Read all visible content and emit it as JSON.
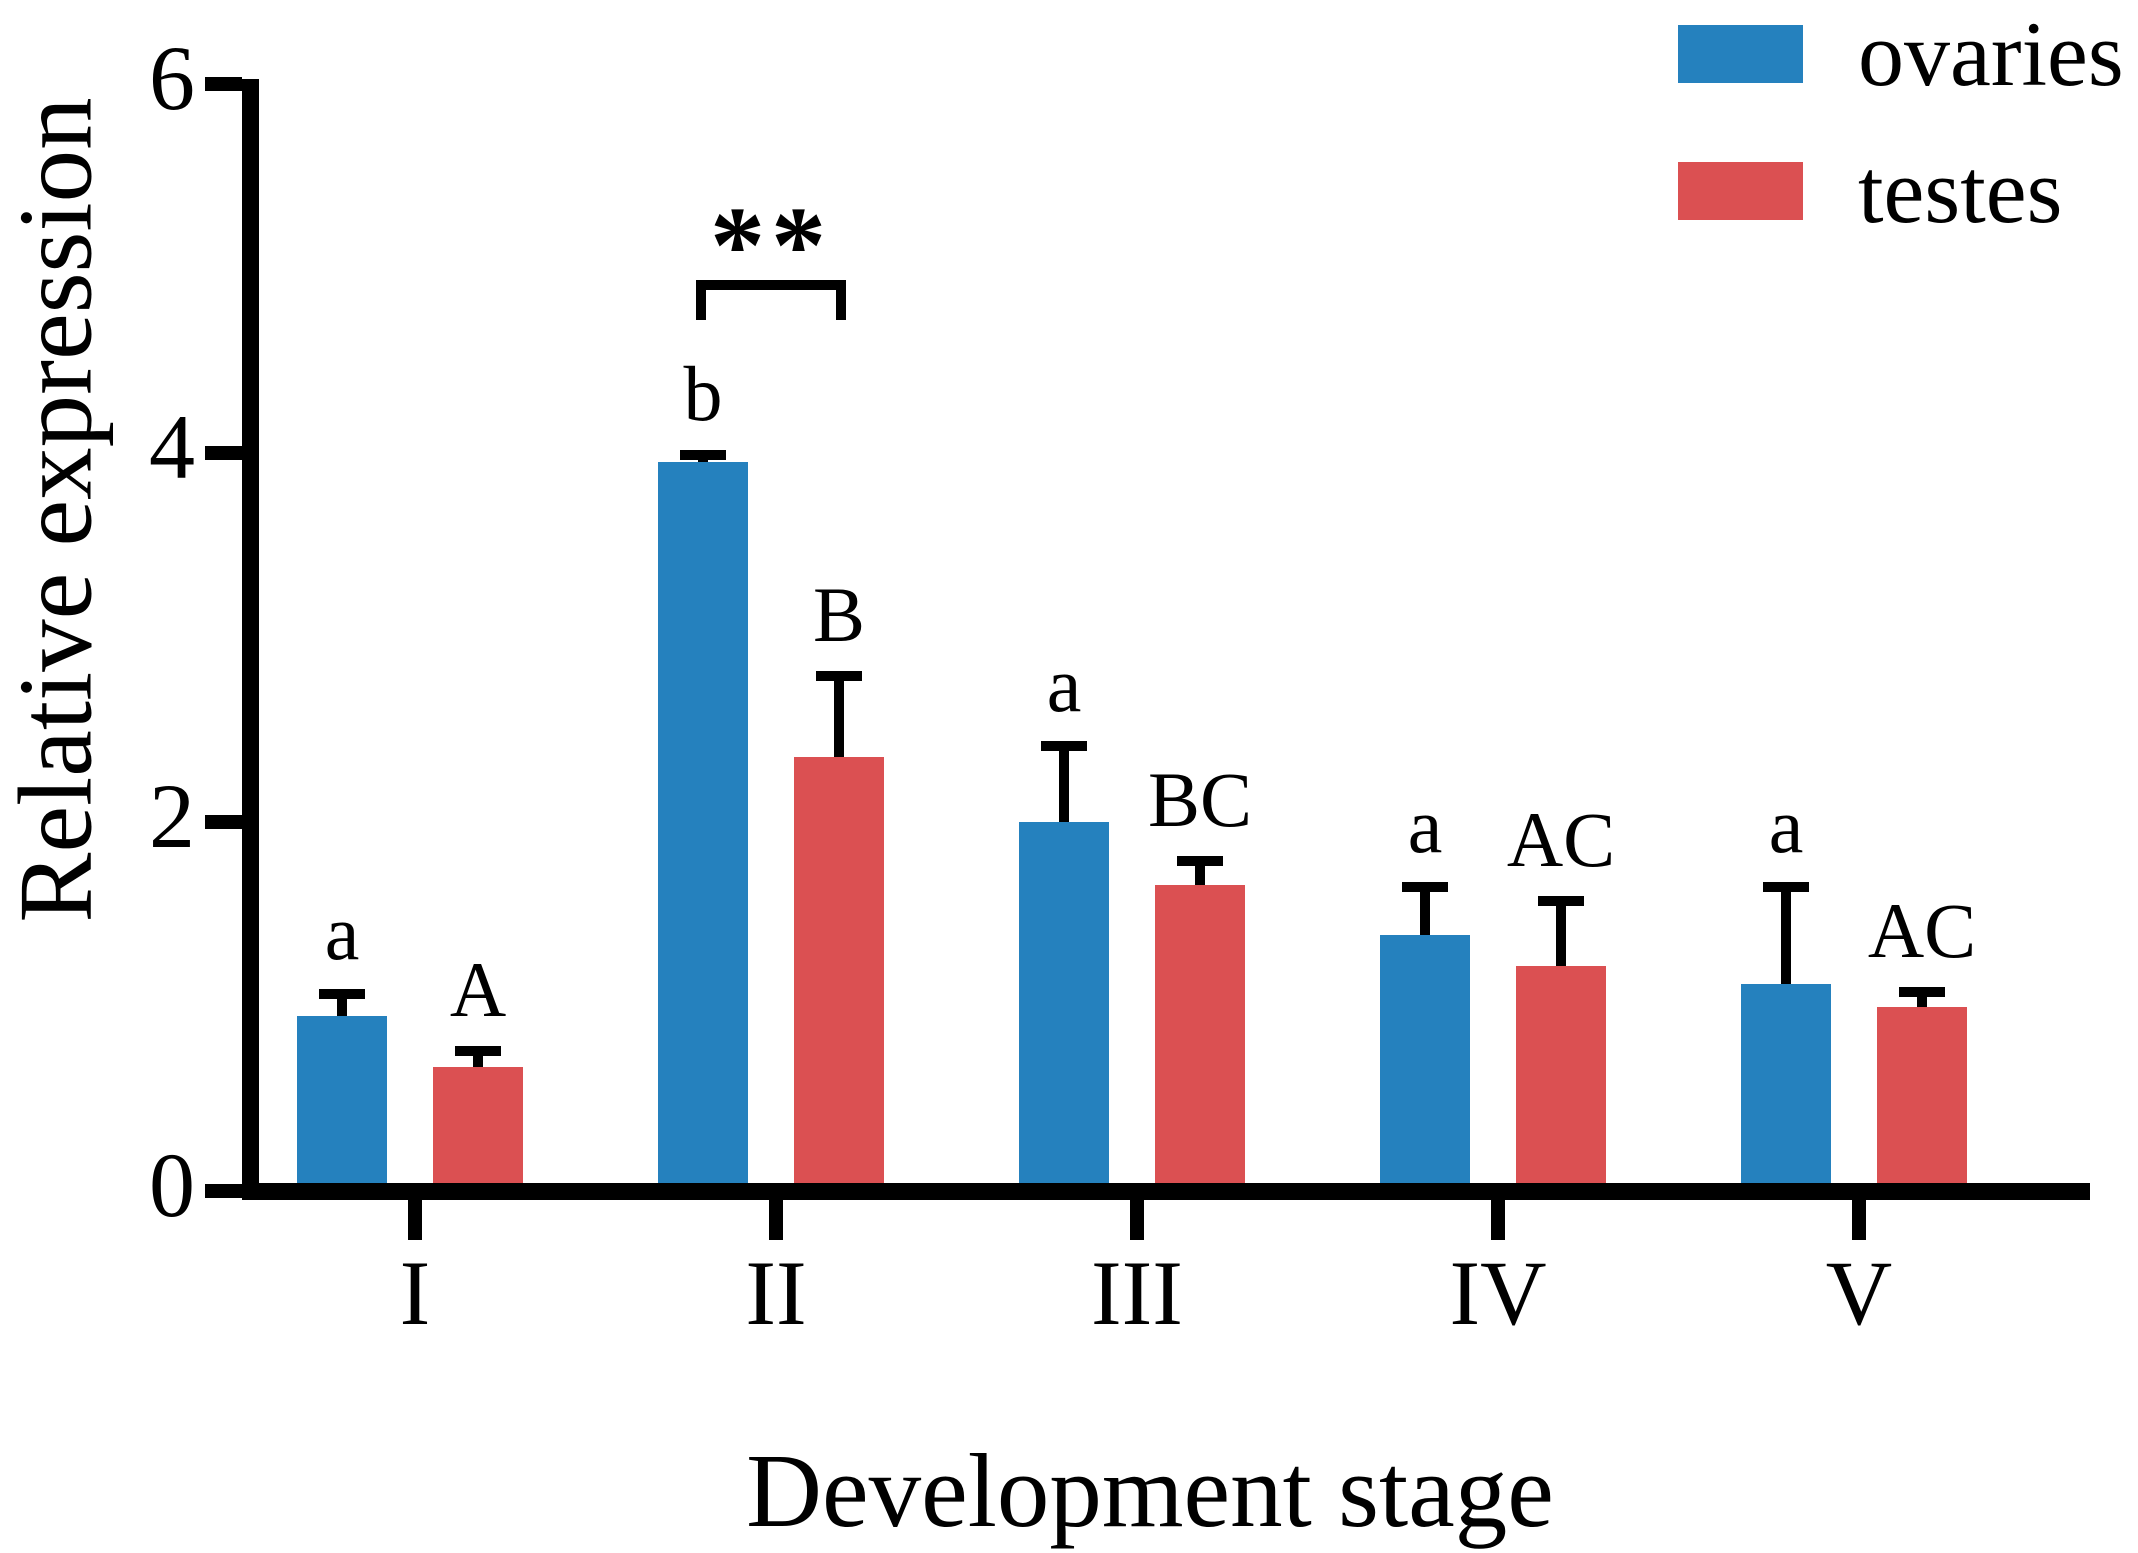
{
  "figure": {
    "ylabel": "Relative expression",
    "xlabel": "Development stage"
  },
  "chart_data": {
    "type": "bar",
    "title": "",
    "xlabel": "Development stage",
    "ylabel": "Relative expression",
    "categories": [
      "I",
      "II",
      "III",
      "IV",
      "V"
    ],
    "series": [
      {
        "name": "ovaries",
        "color": "#2581BE",
        "values": [
          0.95,
          3.95,
          2.0,
          1.39,
          1.12
        ],
        "errors_plus": [
          0.12,
          0.04,
          0.41,
          0.26,
          0.53
        ],
        "sig_letters": [
          "a",
          "b",
          "a",
          "a",
          "a"
        ]
      },
      {
        "name": "testes",
        "color": "#DB5052",
        "values": [
          0.67,
          2.35,
          1.66,
          1.22,
          1.0
        ],
        "errors_plus": [
          0.09,
          0.44,
          0.13,
          0.35,
          0.08
        ],
        "sig_letters": [
          "A",
          "B",
          "BC",
          "AC",
          "AC"
        ]
      }
    ],
    "ylim": [
      0,
      6
    ],
    "yticks": [
      0,
      2,
      4,
      6
    ],
    "grid": false,
    "error_bars": "upper-only",
    "legend_position": "top-right",
    "significance": {
      "label": "**",
      "category": "II",
      "between": [
        "ovaries",
        "testes"
      ]
    }
  }
}
